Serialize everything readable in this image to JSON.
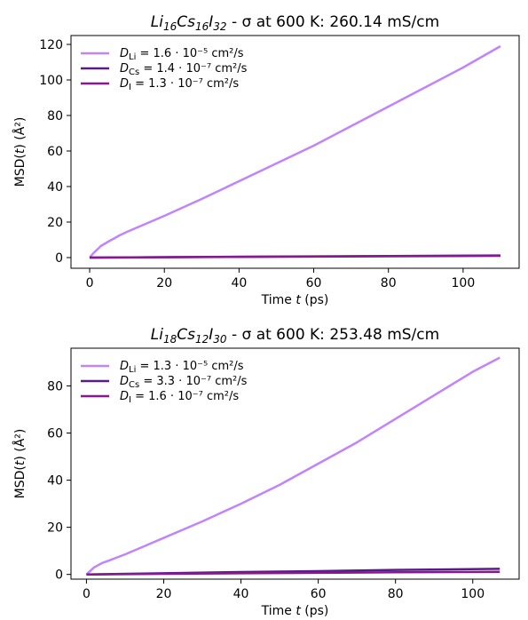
{
  "chart_data": [
    {
      "type": "line",
      "title": {
        "formula": [
          {
            "t": "Li",
            "i": true
          },
          {
            "t": "16",
            "sub": true,
            "i": true
          },
          {
            "t": "Cs",
            "i": true
          },
          {
            "t": "16",
            "sub": true,
            "i": true
          },
          {
            "t": "I",
            "i": true
          },
          {
            "t": "32",
            "sub": true,
            "i": true
          }
        ],
        "rest": " - σ at 600 K: 260.14 mS/cm"
      },
      "xlabel": "Time t (ps)",
      "ylabel": "MSD(t) (Å²)",
      "xlim": [
        -5,
        115
      ],
      "ylim": [
        -6,
        125
      ],
      "xticks": [
        0,
        20,
        40,
        60,
        80,
        100
      ],
      "yticks": [
        0,
        20,
        40,
        60,
        80,
        100,
        120
      ],
      "legend_position": "top-left",
      "series": [
        {
          "name": "D_Li",
          "legend_value": "1.6 · 10⁻⁵ cm²/s",
          "color": "#c084fc",
          "x": [
            0,
            1,
            2,
            3,
            5,
            8,
            10,
            15,
            20,
            30,
            40,
            50,
            60,
            70,
            80,
            90,
            100,
            110
          ],
          "y": [
            0,
            2.5,
            4.5,
            6.5,
            9,
            12.5,
            14.5,
            19,
            23.5,
            33,
            43,
            53,
            63,
            74,
            85,
            96,
            107,
            119
          ]
        },
        {
          "name": "D_Cs",
          "legend_value": "1.4 · 10⁻⁷ cm²/s",
          "color": "#581c87",
          "x": [
            0,
            20,
            40,
            60,
            80,
            110
          ],
          "y": [
            0,
            0.25,
            0.5,
            0.7,
            0.9,
            1.2
          ]
        },
        {
          "name": "D_I",
          "legend_value": "1.3 · 10⁻⁷ cm²/s",
          "color": "#86198f",
          "x": [
            0,
            20,
            40,
            60,
            80,
            110
          ],
          "y": [
            0,
            0.2,
            0.4,
            0.55,
            0.75,
            1.0
          ]
        }
      ]
    },
    {
      "type": "line",
      "title": {
        "formula": [
          {
            "t": "Li",
            "i": true
          },
          {
            "t": "18",
            "sub": true,
            "i": true
          },
          {
            "t": "Cs",
            "i": true
          },
          {
            "t": "12",
            "sub": true,
            "i": true
          },
          {
            "t": "I",
            "i": true
          },
          {
            "t": "30",
            "sub": true,
            "i": true
          }
        ],
        "rest": " - σ at 600 K: 253.48 mS/cm"
      },
      "xlabel": "Time t (ps)",
      "ylabel": "MSD(t) (Å²)",
      "xlim": [
        -4,
        112
      ],
      "ylim": [
        -2,
        96
      ],
      "xticks": [
        0,
        20,
        40,
        60,
        80,
        100
      ],
      "yticks": [
        0,
        20,
        40,
        60,
        80
      ],
      "legend_position": "top-left",
      "series": [
        {
          "name": "D_Li",
          "legend_value": "1.3 · 10⁻⁵ cm²/s",
          "color": "#c084fc",
          "x": [
            0,
            1,
            2,
            4,
            6,
            10,
            15,
            20,
            30,
            40,
            50,
            60,
            70,
            80,
            90,
            100,
            107
          ],
          "y": [
            0,
            1.5,
            3,
            4.8,
            6,
            8.5,
            12,
            15.5,
            22.5,
            30,
            38,
            47,
            56,
            66,
            76,
            86,
            92
          ]
        },
        {
          "name": "D_Cs",
          "legend_value": "3.3 · 10⁻⁷ cm²/s",
          "color": "#581c87",
          "x": [
            0,
            20,
            40,
            60,
            80,
            107
          ],
          "y": [
            0,
            0.5,
            1.0,
            1.4,
            1.9,
            2.4
          ]
        },
        {
          "name": "D_I",
          "legend_value": "1.6 · 10⁻⁷ cm²/s",
          "color": "#86198f",
          "x": [
            0,
            20,
            40,
            60,
            80,
            107
          ],
          "y": [
            0,
            0.25,
            0.5,
            0.7,
            0.9,
            1.1
          ]
        }
      ]
    }
  ]
}
